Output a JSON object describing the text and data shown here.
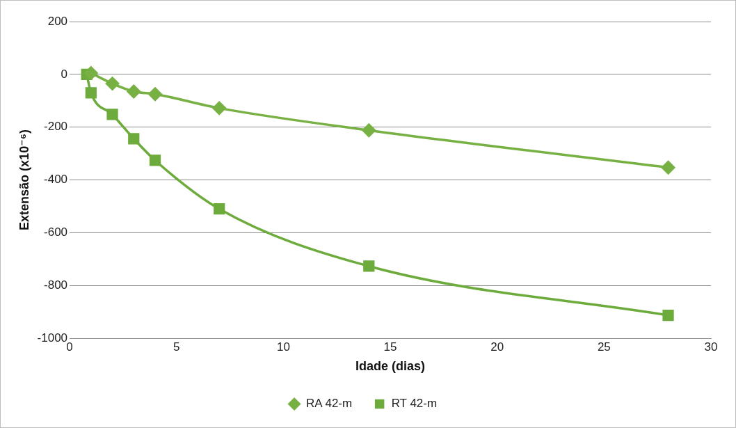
{
  "chart_data": {
    "type": "line",
    "xlabel": "Idade (dias)",
    "ylabel": "Extensão (x10⁻⁶)",
    "xlim": [
      0,
      30
    ],
    "xticks": [
      0,
      5,
      10,
      15,
      20,
      25,
      30
    ],
    "ylim": [
      -1000,
      200
    ],
    "yticks": [
      -1000,
      -800,
      -600,
      -400,
      -200,
      0,
      200
    ],
    "grid": "y",
    "legend": "bottom",
    "line_style": "solid",
    "series": [
      {
        "name": "RA 42-m",
        "color": "#77b043",
        "marker": "diamond",
        "x": [
          1,
          2,
          3,
          4,
          7,
          14,
          28
        ],
        "values": [
          5,
          -35,
          -65,
          -75,
          -128,
          -212,
          -353
        ]
      },
      {
        "name": "RT 42-m",
        "color": "#6cab3c",
        "marker": "square",
        "x": [
          0.8,
          1,
          2,
          3,
          4,
          7,
          14,
          28
        ],
        "values": [
          0,
          -70,
          -152,
          -244,
          -326,
          -510,
          -727,
          -913
        ]
      }
    ]
  }
}
